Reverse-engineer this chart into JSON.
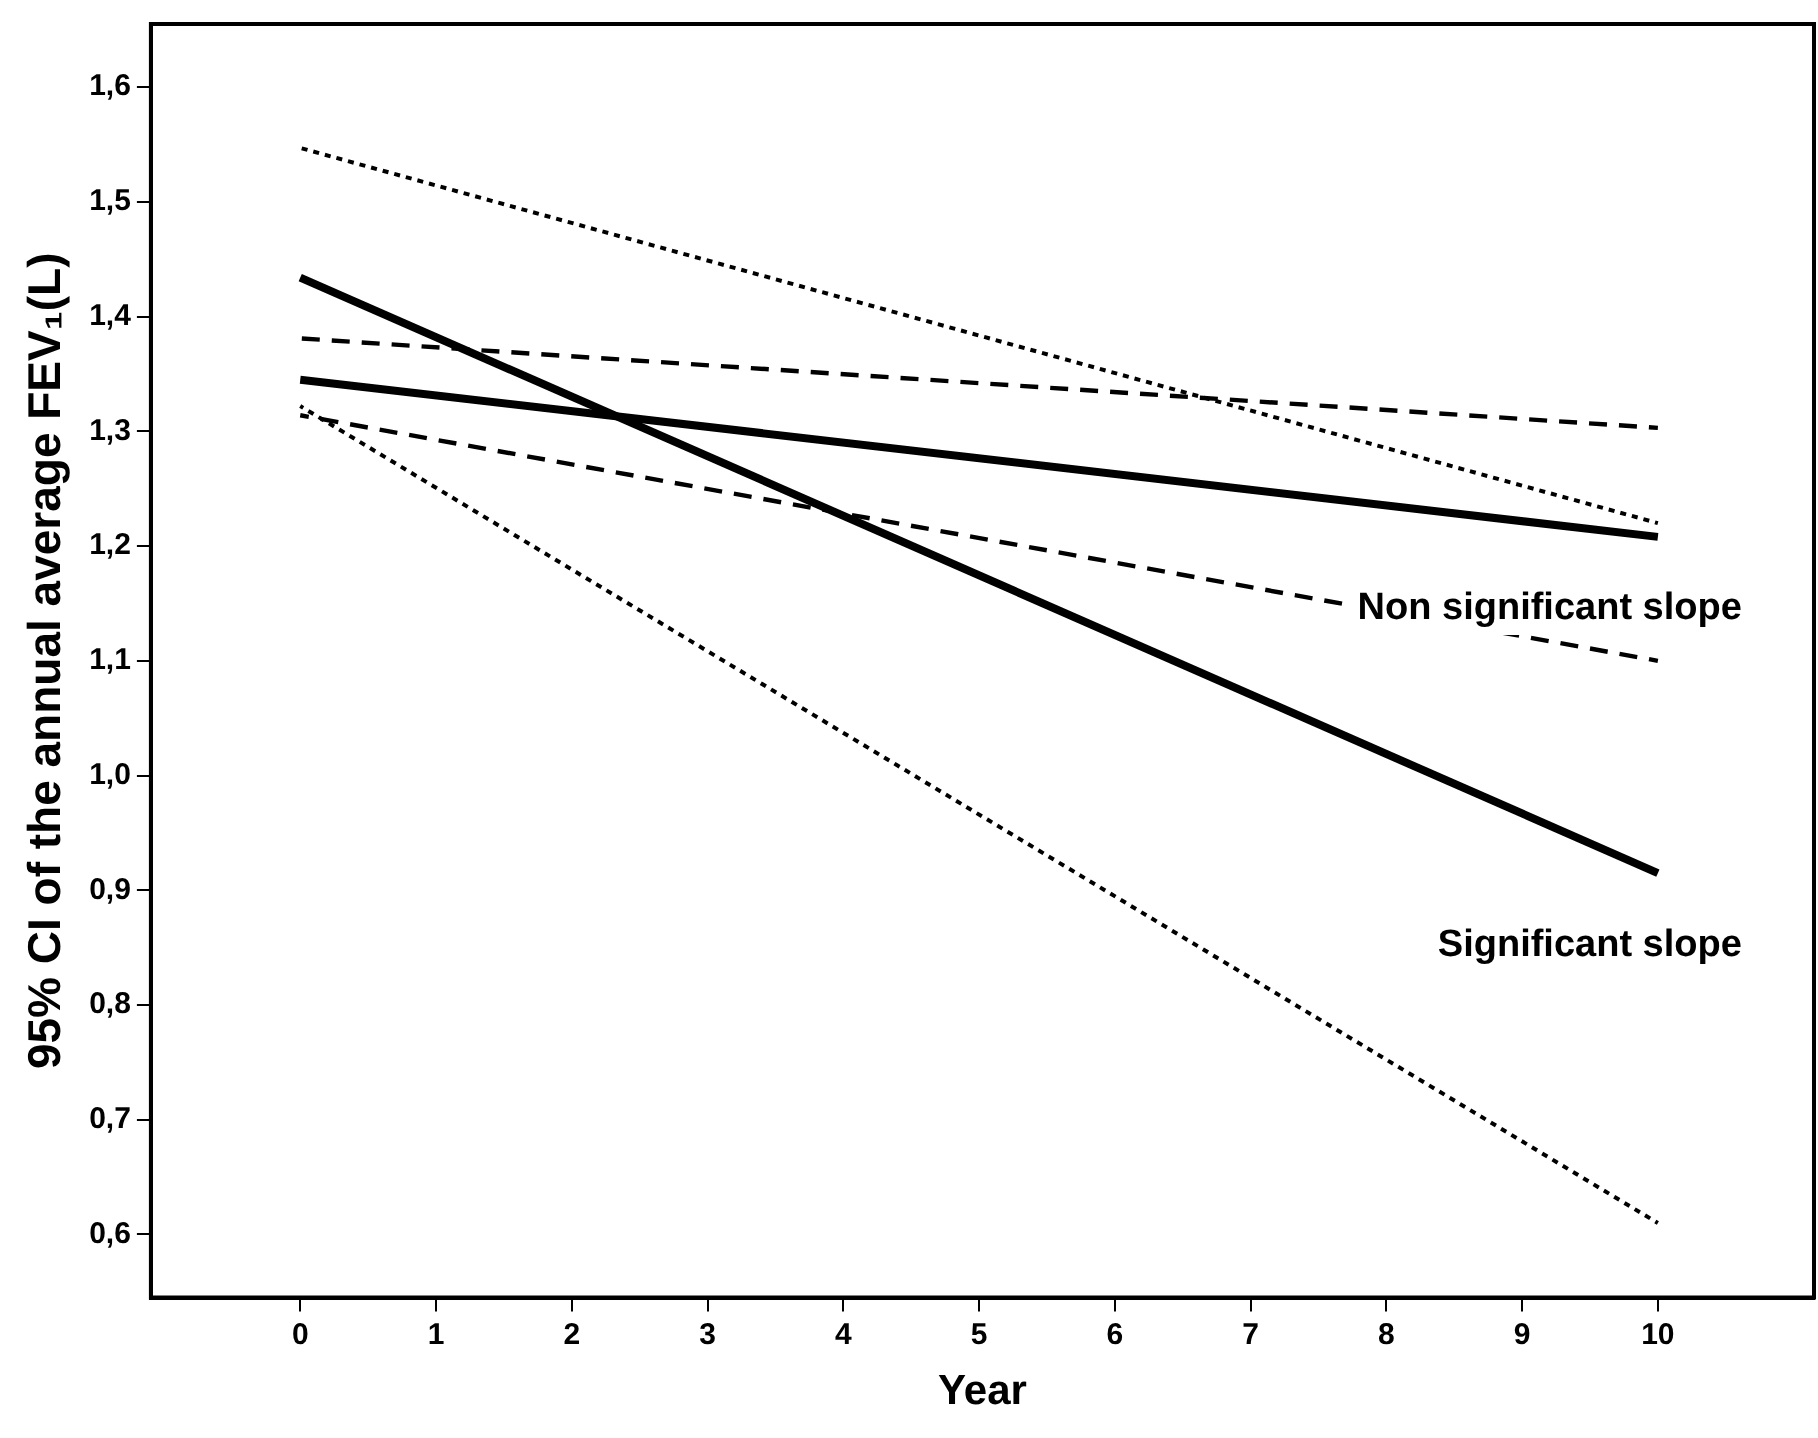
{
  "chart_data": {
    "type": "line",
    "xlabel": "Year",
    "ylabel": "95% CI of the annual average FEV₁(L)",
    "x": [
      0,
      10
    ],
    "series": [
      {
        "color": "#000000",
        "line_style": "dotted",
        "values": [
          1.547,
          1.22
        ]
      },
      {
        "color": "#000000",
        "line_style": "dashed",
        "values": [
          1.381,
          1.303
        ]
      },
      {
        "name": "Non significant slope",
        "color": "#000000",
        "line_style": "solid",
        "values": [
          1.345,
          1.208
        ]
      },
      {
        "name": "Significant slope",
        "color": "#000000",
        "line_style": "solid",
        "values": [
          1.434,
          0.915
        ]
      },
      {
        "color": "#000000",
        "line_style": "dashed",
        "values": [
          1.314,
          1.1
        ]
      },
      {
        "color": "#000000",
        "line_style": "dotted",
        "values": [
          1.322,
          0.61
        ]
      }
    ],
    "xlim": [
      -1.1,
      11.15
    ],
    "xticks": [
      0,
      1,
      2,
      3,
      4,
      5,
      6,
      7,
      8,
      9,
      10
    ],
    "ylim": [
      0.545,
      1.655
    ],
    "yticks": [
      {
        "value": 0.6,
        "label": "0,6"
      },
      {
        "value": 0.7,
        "label": "0,7"
      },
      {
        "value": 0.8,
        "label": "0,8"
      },
      {
        "value": 0.9,
        "label": "0,9"
      },
      {
        "value": 1.0,
        "label": "1,0"
      },
      {
        "value": 1.1,
        "label": "1,1"
      },
      {
        "value": 1.2,
        "label": "1,2"
      },
      {
        "value": 1.3,
        "label": "1,3"
      },
      {
        "value": 1.4,
        "label": "1,4"
      },
      {
        "value": 1.5,
        "label": "1,5"
      },
      {
        "value": 1.6,
        "label": "1,6"
      }
    ],
    "grid": false,
    "legend": false,
    "marker": "none"
  }
}
